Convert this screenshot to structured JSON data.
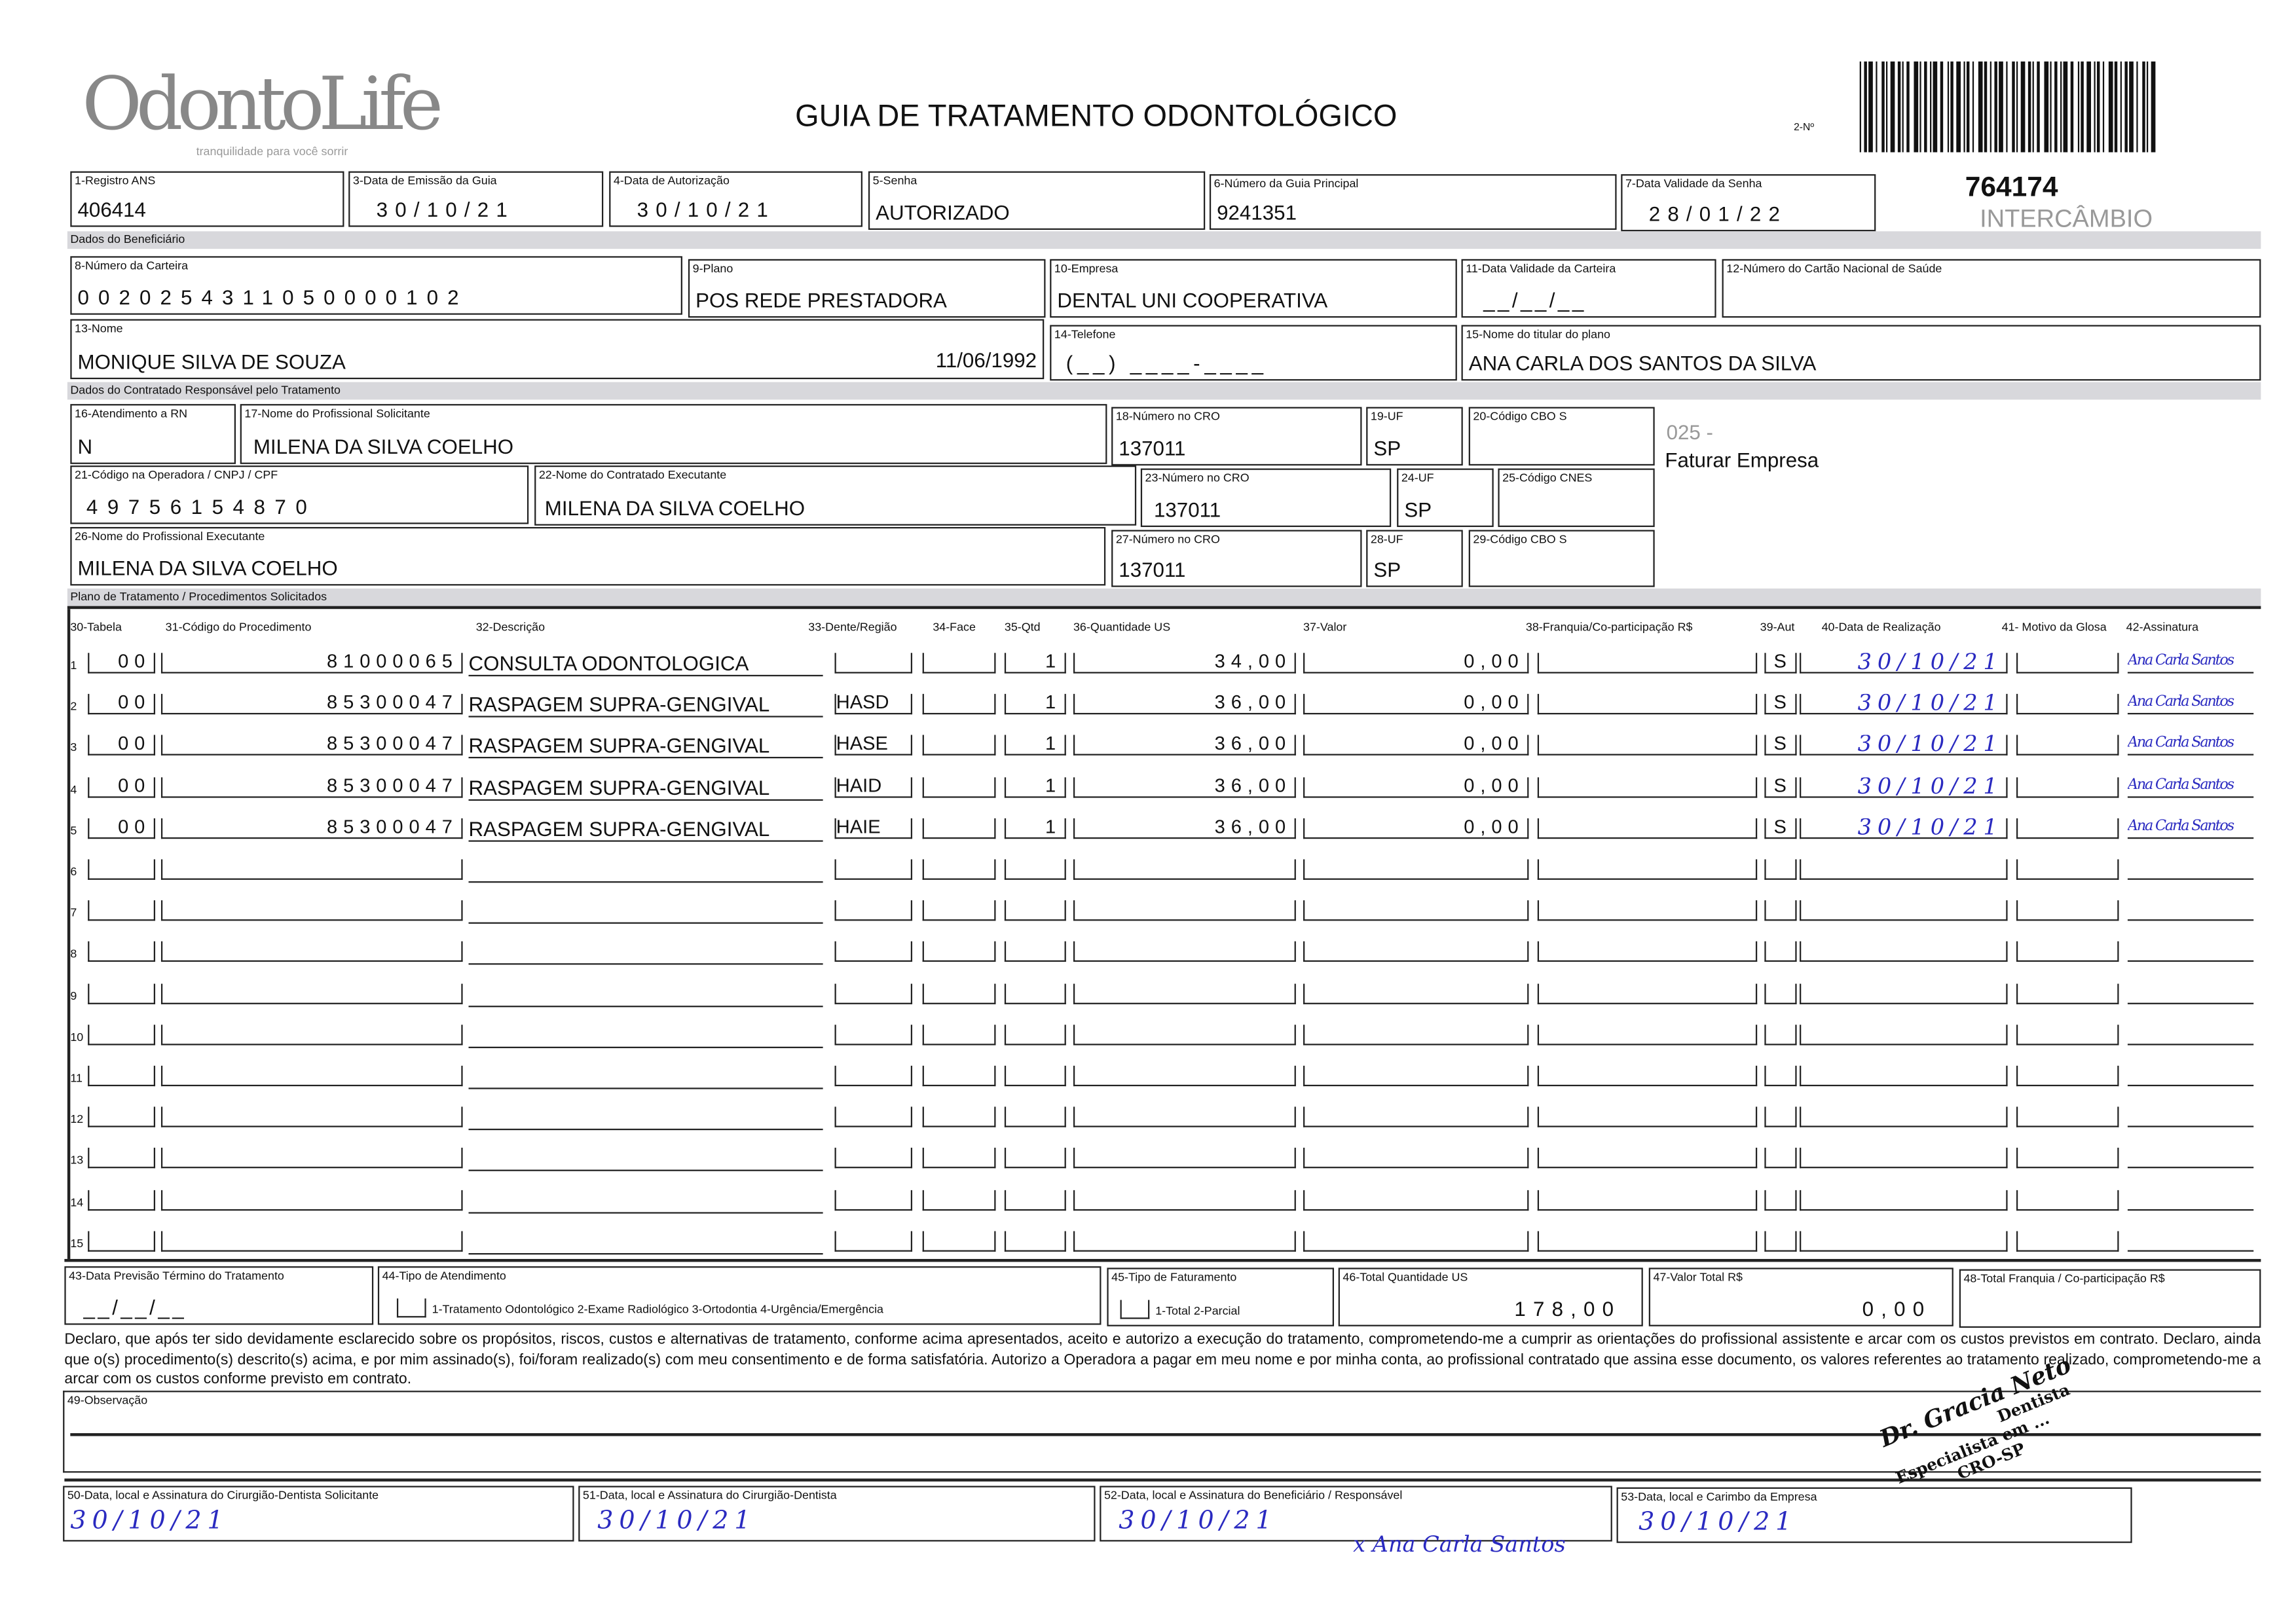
{
  "header": {
    "logo": "OdontoLife",
    "logo_tagline": "tranquilidade para você sorrir",
    "title": "GUIA DE TRATAMENTO ODONTOLÓGICO",
    "numero_label": "2-Nº",
    "guide_number": "764174",
    "intercambio": "INTERCÂMBIO"
  },
  "fields": {
    "f1": {
      "label": "1-Registro ANS",
      "value": "406414"
    },
    "f3": {
      "label": "3-Data de Emissão da Guia",
      "value": "30/10/21"
    },
    "f4": {
      "label": "4-Data de Autorização",
      "value": "30/10/21"
    },
    "f5": {
      "label": "5-Senha",
      "value": "AUTORIZADO"
    },
    "f6": {
      "label": "6-Número da Guia Principal",
      "value": "9241351"
    },
    "f7": {
      "label": "7-Data Validade da Senha",
      "value": "28/01/22"
    },
    "f8": {
      "label": "8-Número da Carteira",
      "value": "0020254311050000102"
    },
    "f9": {
      "label": "9-Plano",
      "value": "POS REDE PRESTADORA"
    },
    "f10": {
      "label": "10-Empresa",
      "value": "DENTAL UNI  COOPERATIVA"
    },
    "f11": {
      "label": "11-Data Validade da Carteira",
      "value": "__/__/__"
    },
    "f12": {
      "label": "12-Número do Cartão Nacional de Saúde",
      "value": ""
    },
    "f13": {
      "label": "13-Nome",
      "value": "MONIQUE SILVA DE SOUZA",
      "birth": "11/06/1992"
    },
    "f14": {
      "label": "14-Telefone",
      "value": "(__) ____-____"
    },
    "f15": {
      "label": "15-Nome do titular do plano",
      "value": "ANA CARLA DOS SANTOS DA SILVA"
    },
    "f16": {
      "label": "16-Atendimento a RN",
      "value": "N"
    },
    "f17": {
      "label": "17-Nome do Profissional Solicitante",
      "value": "MILENA DA SILVA COELHO"
    },
    "f18": {
      "label": "18-Número no CRO",
      "value": "137011"
    },
    "f19": {
      "label": "19-UF",
      "value": "SP"
    },
    "f20": {
      "label": "20-Código CBO S",
      "value": ""
    },
    "f21": {
      "label": "21-Código na Operadora / CNPJ / CPF",
      "value": "49756154870"
    },
    "f22": {
      "label": "22-Nome do Contratado Executante",
      "value": "MILENA DA SILVA COELHO"
    },
    "f23": {
      "label": "23-Número no CRO",
      "value": "137011"
    },
    "f24": {
      "label": "24-UF",
      "value": "SP"
    },
    "f25": {
      "label": "25-Código CNES",
      "value": ""
    },
    "f26": {
      "label": "26-Nome do Profissional Executante",
      "value": "MILENA DA SILVA COELHO"
    },
    "f27": {
      "label": "27-Número no CRO",
      "value": "137011"
    },
    "f28": {
      "label": "28-UF",
      "value": "SP"
    },
    "f29": {
      "label": "29-Código CBO S",
      "value": ""
    }
  },
  "side_note": {
    "code": "025 -",
    "text": "Faturar Empresa"
  },
  "sections": {
    "beneficiario": "Dados do Beneficiário",
    "contratado": "Dados do Contratado Responsável pelo Tratamento",
    "plano": "Plano de Tratamento / Procedimentos Solicitados"
  },
  "columns": [
    "30-Tabela",
    "31-Código do Procedimento",
    "32-Descrição",
    "33-Dente/Região",
    "34-Face",
    "35-Qtd",
    "36-Quantidade US",
    "37-Valor",
    "38-Franquia/Co-participação R$",
    "39-Aut",
    "40-Data de Realização",
    "41- Motivo da Glosa",
    "42-Assinatura"
  ],
  "procedures": [
    {
      "n": "1",
      "tabela": "00",
      "codigo": "81000065",
      "descricao": "CONSULTA ODONTOLOGICA",
      "dente": "",
      "face": "",
      "qtd": "1",
      "us": "34,00",
      "valor": "0,00",
      "franquia": "",
      "aut": "S",
      "data": "30/10/21",
      "glosa": "",
      "assinatura": "Ana Carla Santos"
    },
    {
      "n": "2",
      "tabela": "00",
      "codigo": "85300047",
      "descricao": "RASPAGEM SUPRA-GENGIVAL",
      "dente": "HASD",
      "face": "",
      "qtd": "1",
      "us": "36,00",
      "valor": "0,00",
      "franquia": "",
      "aut": "S",
      "data": "30/10/21",
      "glosa": "",
      "assinatura": "Ana Carla Santos"
    },
    {
      "n": "3",
      "tabela": "00",
      "codigo": "85300047",
      "descricao": "RASPAGEM SUPRA-GENGIVAL",
      "dente": "HASE",
      "face": "",
      "qtd": "1",
      "us": "36,00",
      "valor": "0,00",
      "franquia": "",
      "aut": "S",
      "data": "30/10/21",
      "glosa": "",
      "assinatura": "Ana Carla Santos"
    },
    {
      "n": "4",
      "tabela": "00",
      "codigo": "85300047",
      "descricao": "RASPAGEM SUPRA-GENGIVAL",
      "dente": "HAID",
      "face": "",
      "qtd": "1",
      "us": "36,00",
      "valor": "0,00",
      "franquia": "",
      "aut": "S",
      "data": "30/10/21",
      "glosa": "",
      "assinatura": "Ana Carla Santos"
    },
    {
      "n": "5",
      "tabela": "00",
      "codigo": "85300047",
      "descricao": "RASPAGEM SUPRA-GENGIVAL",
      "dente": "HAIE",
      "face": "",
      "qtd": "1",
      "us": "36,00",
      "valor": "0,00",
      "franquia": "",
      "aut": "S",
      "data": "30/10/21",
      "glosa": "",
      "assinatura": "Ana Carla Santos"
    },
    {
      "n": "6"
    },
    {
      "n": "7"
    },
    {
      "n": "8"
    },
    {
      "n": "9"
    },
    {
      "n": "10"
    },
    {
      "n": "11"
    },
    {
      "n": "12"
    },
    {
      "n": "13"
    },
    {
      "n": "14"
    },
    {
      "n": "15"
    }
  ],
  "totals": {
    "f43": {
      "label": "43-Data Previsão Término do Tratamento",
      "value": "__/__/__"
    },
    "f44": {
      "label": "44-Tipo de Atendimento",
      "options": "1-Tratamento Odontológico  2-Exame Radiológico  3-Ortodontia  4-Urgência/Emergência"
    },
    "f45": {
      "label": "45-Tipo de Faturamento",
      "options": "1-Total  2-Parcial"
    },
    "f46": {
      "label": "46-Total Quantidade US",
      "value": "178,00"
    },
    "f47": {
      "label": "47-Valor Total R$",
      "value": "0,00"
    },
    "f48": {
      "label": "48-Total Franquia / Co-participação R$",
      "value": ""
    }
  },
  "declaration": "Declaro, que após ter sido devidamente esclarecido sobre os propósitos, riscos, custos e alternativas de tratamento, conforme acima apresentados, aceito e autorizo a execução do tratamento, comprometendo-me a cumprir as orientações do profissional assistente e arcar com os custos previstos em contrato. Declaro, ainda que o(s) procedimento(s) descrito(s) acima, e por mim assinado(s), foi/foram realizado(s) com meu consentimento e de forma satisfatória. Autorizo a Operadora a pagar em meu nome e por minha conta, ao profissional contratado que assina esse documento, os valores referentes ao tratamento realizado, comprometendo-me a arcar com os custos conforme previsto em contrato.",
  "observacao": {
    "label": "49-Observação",
    "value": ""
  },
  "signatures": {
    "f50": {
      "label": "50-Data, local e Assinatura do Cirurgião-Dentista Solicitante",
      "date": "30/10/21"
    },
    "f51": {
      "label": "51-Data, local e Assinatura do Cirurgião-Dentista",
      "date": "30/10/21"
    },
    "f52": {
      "label": "52-Data, local e Assinatura do Beneficiário / Responsável",
      "date": "30/10/21",
      "signature": "x Ana Carla Santos"
    },
    "f53": {
      "label": "53-Data, local e Carimbo da Empresa",
      "date": "30/10/21"
    }
  },
  "stamp": {
    "name": "Dr. Gracia Neto",
    "title": "Dentista",
    "extra": "Especialista em ...",
    "cro": "CRO-SP"
  },
  "colors": {
    "ink": "#2a2ac0",
    "section_bg": "#d8d8dc"
  }
}
